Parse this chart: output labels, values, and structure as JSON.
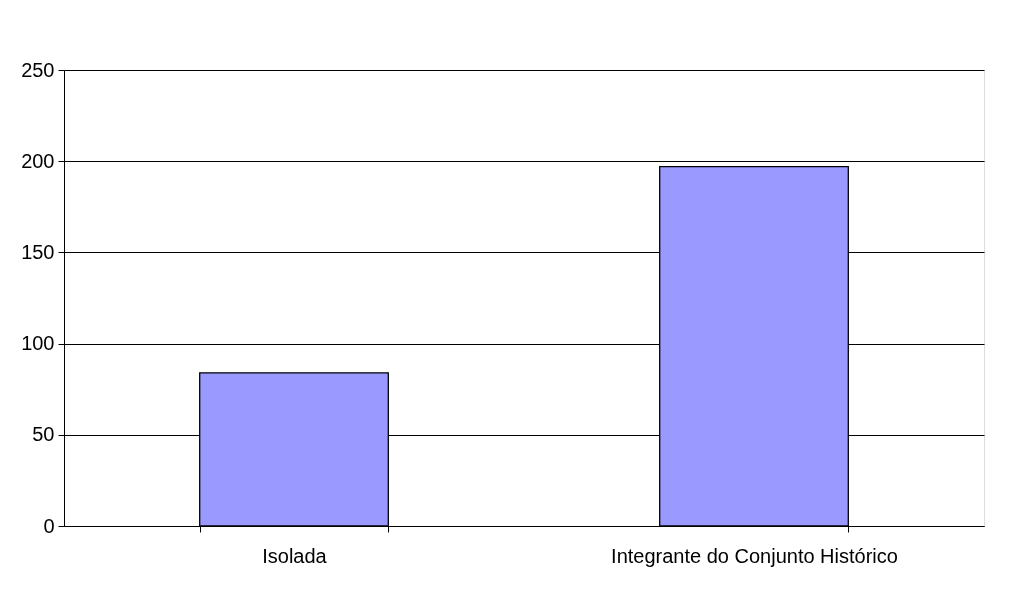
{
  "chart_data": {
    "type": "bar",
    "categories": [
      "Isolada",
      "Integrante do Conjunto Histórico"
    ],
    "values": [
      84,
      197
    ],
    "color": "#9999ff",
    "ylim": [
      0,
      250
    ],
    "yticks": [
      0,
      50,
      100,
      150,
      200,
      250
    ],
    "grid": "y"
  }
}
